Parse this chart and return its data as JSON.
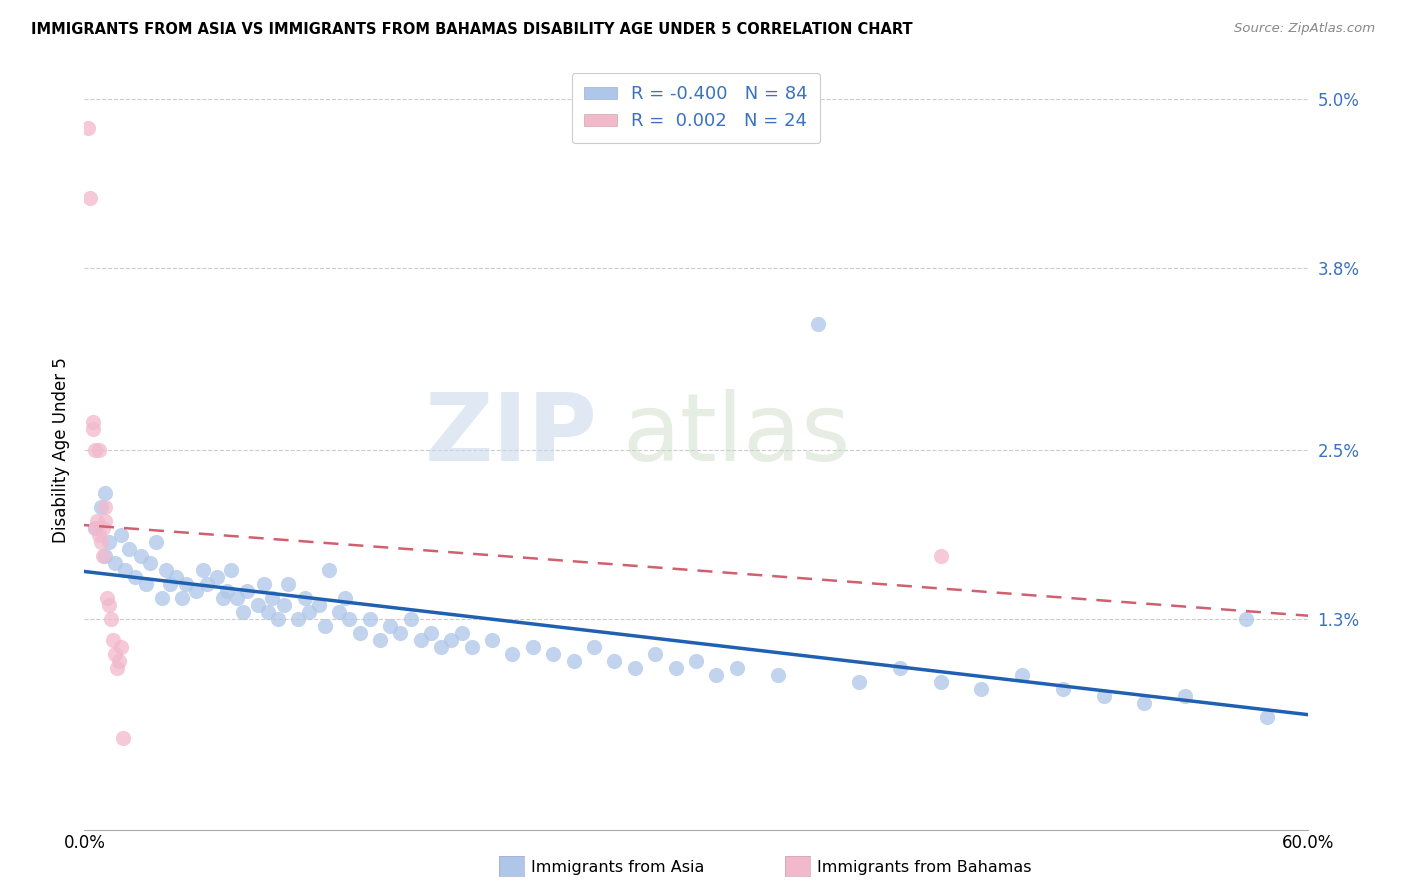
{
  "title": "IMMIGRANTS FROM ASIA VS IMMIGRANTS FROM BAHAMAS DISABILITY AGE UNDER 5 CORRELATION CHART",
  "source": "Source: ZipAtlas.com",
  "ylabel": "Disability Age Under 5",
  "xlim": [
    0.0,
    0.6
  ],
  "ylim": [
    -0.002,
    0.052
  ],
  "yticks": [
    0.013,
    0.025,
    0.038,
    0.05
  ],
  "ytick_labels": [
    "1.3%",
    "2.5%",
    "3.8%",
    "5.0%"
  ],
  "xticks": [
    0.0,
    0.1,
    0.2,
    0.3,
    0.4,
    0.5,
    0.6
  ],
  "xtick_labels": [
    "0.0%",
    "",
    "",
    "",
    "",
    "",
    "60.0%"
  ],
  "legend_labels": [
    "Immigrants from Asia",
    "Immigrants from Bahamas"
  ],
  "R_asia": -0.4,
  "N_asia": 84,
  "R_bahamas": 0.002,
  "N_bahamas": 24,
  "color_asia": "#aec6e8",
  "color_bahamas": "#f2b8cc",
  "line_color_asia": "#2060b0",
  "line_color_bahamas": "#d06070",
  "watermark_zip": "ZIP",
  "watermark_atlas": "atlas",
  "asia_x": [
    0.005,
    0.008,
    0.01,
    0.01,
    0.012,
    0.015,
    0.018,
    0.02,
    0.022,
    0.025,
    0.028,
    0.03,
    0.032,
    0.035,
    0.038,
    0.04,
    0.042,
    0.045,
    0.048,
    0.05,
    0.055,
    0.058,
    0.06,
    0.065,
    0.068,
    0.07,
    0.072,
    0.075,
    0.078,
    0.08,
    0.085,
    0.088,
    0.09,
    0.092,
    0.095,
    0.098,
    0.1,
    0.105,
    0.108,
    0.11,
    0.115,
    0.118,
    0.12,
    0.125,
    0.128,
    0.13,
    0.135,
    0.14,
    0.145,
    0.15,
    0.155,
    0.16,
    0.165,
    0.17,
    0.175,
    0.18,
    0.185,
    0.19,
    0.2,
    0.21,
    0.22,
    0.23,
    0.24,
    0.25,
    0.26,
    0.27,
    0.28,
    0.29,
    0.3,
    0.31,
    0.32,
    0.34,
    0.36,
    0.38,
    0.4,
    0.42,
    0.44,
    0.46,
    0.48,
    0.5,
    0.52,
    0.54,
    0.57,
    0.58
  ],
  "asia_y": [
    0.0195,
    0.021,
    0.0175,
    0.022,
    0.0185,
    0.017,
    0.019,
    0.0165,
    0.018,
    0.016,
    0.0175,
    0.0155,
    0.017,
    0.0185,
    0.0145,
    0.0165,
    0.0155,
    0.016,
    0.0145,
    0.0155,
    0.015,
    0.0165,
    0.0155,
    0.016,
    0.0145,
    0.015,
    0.0165,
    0.0145,
    0.0135,
    0.015,
    0.014,
    0.0155,
    0.0135,
    0.0145,
    0.013,
    0.014,
    0.0155,
    0.013,
    0.0145,
    0.0135,
    0.014,
    0.0125,
    0.0165,
    0.0135,
    0.0145,
    0.013,
    0.012,
    0.013,
    0.0115,
    0.0125,
    0.012,
    0.013,
    0.0115,
    0.012,
    0.011,
    0.0115,
    0.012,
    0.011,
    0.0115,
    0.0105,
    0.011,
    0.0105,
    0.01,
    0.011,
    0.01,
    0.0095,
    0.0105,
    0.0095,
    0.01,
    0.009,
    0.0095,
    0.009,
    0.034,
    0.0085,
    0.0095,
    0.0085,
    0.008,
    0.009,
    0.008,
    0.0075,
    0.007,
    0.0075,
    0.013,
    0.006
  ],
  "bahamas_x": [
    0.002,
    0.003,
    0.004,
    0.004,
    0.005,
    0.005,
    0.006,
    0.007,
    0.007,
    0.008,
    0.009,
    0.009,
    0.01,
    0.01,
    0.011,
    0.012,
    0.013,
    0.014,
    0.015,
    0.016,
    0.017,
    0.018,
    0.019,
    0.42
  ],
  "bahamas_y": [
    0.048,
    0.043,
    0.0265,
    0.027,
    0.025,
    0.0195,
    0.02,
    0.025,
    0.019,
    0.0185,
    0.0195,
    0.0175,
    0.021,
    0.02,
    0.0145,
    0.014,
    0.013,
    0.0115,
    0.0105,
    0.0095,
    0.01,
    0.011,
    0.0045,
    0.0175
  ]
}
